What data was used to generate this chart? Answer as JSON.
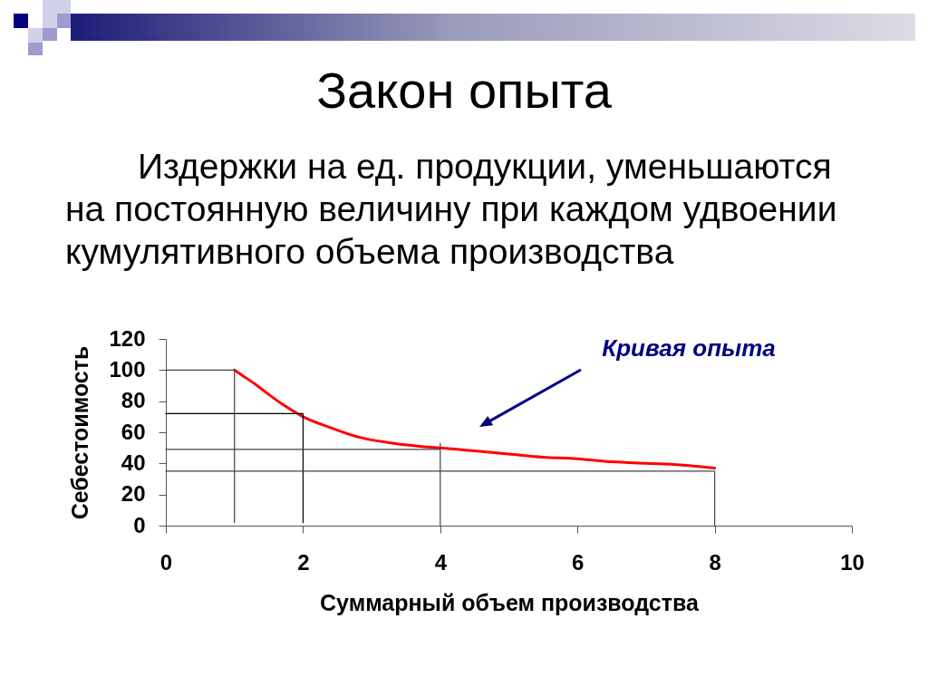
{
  "chart_data": {
    "type": "line",
    "title": "Закон опыта",
    "subtitle": "Издержки на ед. продукции, уменьшаются на постоянную величину при каждом удвоении кумулятивного объема производства",
    "xlabel": "Суммарный объем производства",
    "ylabel": "Себестоимость",
    "annotations": [
      "Кривая опыта"
    ],
    "xlim": [
      0,
      10
    ],
    "xticks": [
      0,
      2,
      4,
      6,
      8,
      10
    ],
    "ylim": [
      0,
      120
    ],
    "yticks": [
      0,
      20,
      40,
      60,
      80,
      100,
      120
    ],
    "series": [
      {
        "color": "#ff0000",
        "x": [
          1,
          1.1,
          1.3,
          1.45,
          1.7,
          2,
          2.4,
          2.8,
          3.3,
          3.7,
          4,
          4.5,
          5,
          5.5,
          6,
          6.5,
          7,
          7.5,
          8
        ],
        "values": [
          100,
          97,
          91,
          86,
          78,
          70,
          63,
          57,
          53,
          51,
          50,
          48,
          46,
          44,
          43,
          41,
          40,
          39,
          37
        ]
      },
      {
        "color": "#444444",
        "x": [
          0,
          1,
          1
        ],
        "values": [
          100,
          100,
          2
        ]
      },
      {
        "color": "#000000",
        "x": [
          0,
          2,
          2
        ],
        "values": [
          72,
          72,
          2
        ]
      },
      {
        "color": "#444444",
        "x": [
          0,
          4,
          4,
          4
        ],
        "values": [
          49,
          49,
          53,
          0
        ]
      },
      {
        "color": "#444444",
        "x": [
          0,
          8,
          8
        ],
        "values": [
          35,
          35,
          0
        ]
      }
    ]
  }
}
